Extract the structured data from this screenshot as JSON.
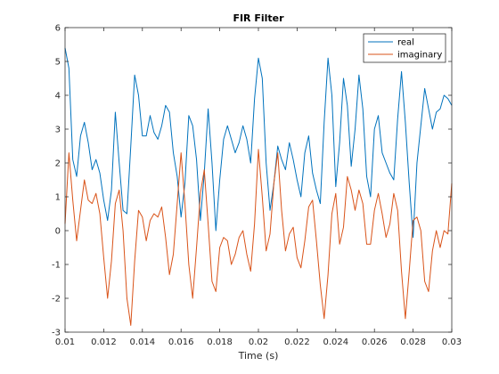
{
  "chart_data": {
    "type": "line",
    "title": "FIR Filter",
    "xlabel": "Time (s)",
    "ylabel": "",
    "xlim": [
      0.01,
      0.03
    ],
    "ylim": [
      -3,
      6
    ],
    "xticks": [
      "0.01",
      "0.012",
      "0.014",
      "0.016",
      "0.018",
      "0.02",
      "0.022",
      "0.024",
      "0.026",
      "0.028",
      "0.03"
    ],
    "yticks": [
      "-3",
      "-2",
      "-1",
      "0",
      "1",
      "2",
      "3",
      "4",
      "5",
      "6"
    ],
    "grid": false,
    "legend_position": "top-right",
    "series": [
      {
        "name": "real",
        "color": "#0072bd",
        "x": [
          0.01,
          0.0102,
          0.0104,
          0.0106,
          0.0108,
          0.011,
          0.0112,
          0.0114,
          0.0116,
          0.0118,
          0.012,
          0.0122,
          0.0124,
          0.0126,
          0.0128,
          0.013,
          0.0132,
          0.0134,
          0.0136,
          0.0138,
          0.014,
          0.0142,
          0.0144,
          0.0146,
          0.0148,
          0.015,
          0.0152,
          0.0154,
          0.0156,
          0.0158,
          0.016,
          0.0162,
          0.0164,
          0.0166,
          0.0168,
          0.017,
          0.0172,
          0.0174,
          0.0176,
          0.0178,
          0.018,
          0.0182,
          0.0184,
          0.0186,
          0.0188,
          0.019,
          0.0192,
          0.0194,
          0.0196,
          0.0198,
          0.02,
          0.0202,
          0.0204,
          0.0206,
          0.0208,
          0.021,
          0.0212,
          0.0214,
          0.0216,
          0.0218,
          0.022,
          0.0222,
          0.0224,
          0.0226,
          0.0228,
          0.023,
          0.0232,
          0.0234,
          0.0236,
          0.0238,
          0.024,
          0.0242,
          0.0244,
          0.0246,
          0.0248,
          0.025,
          0.0252,
          0.0254,
          0.0256,
          0.0258,
          0.026,
          0.0262,
          0.0264,
          0.0266,
          0.0268,
          0.027,
          0.0272,
          0.0274,
          0.0276,
          0.0278,
          0.028,
          0.0282,
          0.0284,
          0.0286,
          0.0288,
          0.029,
          0.0292,
          0.0294,
          0.0296,
          0.0298,
          0.03
        ],
        "values": [
          5.4,
          4.8,
          2.1,
          1.6,
          2.8,
          3.2,
          2.6,
          1.8,
          2.1,
          1.7,
          0.9,
          0.3,
          1.2,
          3.5,
          2.0,
          0.6,
          0.5,
          2.5,
          4.6,
          4.0,
          2.8,
          2.8,
          3.4,
          2.9,
          2.7,
          3.1,
          3.7,
          3.5,
          2.3,
          1.6,
          0.4,
          1.4,
          3.4,
          3.1,
          2.1,
          0.3,
          1.7,
          3.6,
          2.0,
          0.0,
          1.5,
          2.7,
          3.1,
          2.7,
          2.3,
          2.6,
          3.1,
          2.7,
          2.0,
          3.9,
          5.1,
          4.5,
          2.0,
          0.6,
          1.4,
          2.5,
          2.1,
          1.8,
          2.6,
          2.1,
          1.5,
          1.0,
          2.3,
          2.8,
          1.7,
          1.2,
          0.8,
          3.2,
          5.1,
          4.0,
          1.3,
          2.6,
          4.5,
          3.7,
          1.9,
          3.0,
          4.6,
          3.6,
          1.6,
          1.0,
          3.0,
          3.4,
          2.3,
          2.0,
          1.7,
          1.5,
          3.3,
          4.7,
          3.2,
          1.4,
          -0.2,
          2.0,
          3.1,
          4.2,
          3.6,
          3.0,
          3.5,
          3.6,
          4.0,
          3.9,
          3.7
        ]
      },
      {
        "name": "imaginary",
        "color": "#d95319",
        "x": [
          0.01,
          0.0102,
          0.0104,
          0.0106,
          0.0108,
          0.011,
          0.0112,
          0.0114,
          0.0116,
          0.0118,
          0.012,
          0.0122,
          0.0124,
          0.0126,
          0.0128,
          0.013,
          0.0132,
          0.0134,
          0.0136,
          0.0138,
          0.014,
          0.0142,
          0.0144,
          0.0146,
          0.0148,
          0.015,
          0.0152,
          0.0154,
          0.0156,
          0.0158,
          0.016,
          0.0162,
          0.0164,
          0.0166,
          0.0168,
          0.017,
          0.0172,
          0.0174,
          0.0176,
          0.0178,
          0.018,
          0.0182,
          0.0184,
          0.0186,
          0.0188,
          0.019,
          0.0192,
          0.0194,
          0.0196,
          0.0198,
          0.02,
          0.0202,
          0.0204,
          0.0206,
          0.0208,
          0.021,
          0.0212,
          0.0214,
          0.0216,
          0.0218,
          0.022,
          0.0222,
          0.0224,
          0.0226,
          0.0228,
          0.023,
          0.0232,
          0.0234,
          0.0236,
          0.0238,
          0.024,
          0.0242,
          0.0244,
          0.0246,
          0.0248,
          0.025,
          0.0252,
          0.0254,
          0.0256,
          0.0258,
          0.026,
          0.0262,
          0.0264,
          0.0266,
          0.0268,
          0.027,
          0.0272,
          0.0274,
          0.0276,
          0.0278,
          0.028,
          0.0282,
          0.0284,
          0.0286,
          0.0288,
          0.029,
          0.0292,
          0.0294,
          0.0296,
          0.0298,
          0.03
        ],
        "values": [
          0.2,
          2.3,
          0.9,
          -0.3,
          0.6,
          1.5,
          0.9,
          0.8,
          1.1,
          0.5,
          -0.8,
          -2.0,
          -0.9,
          0.8,
          1.2,
          0.0,
          -2.0,
          -2.8,
          -0.9,
          0.6,
          0.4,
          -0.3,
          0.3,
          0.5,
          0.4,
          0.7,
          -0.2,
          -1.3,
          -0.7,
          0.8,
          2.3,
          0.8,
          -1.0,
          -2.0,
          -0.5,
          1.1,
          1.8,
          0.2,
          -1.5,
          -1.8,
          -0.5,
          -0.2,
          -0.3,
          -1.0,
          -0.7,
          -0.2,
          0.0,
          -0.7,
          -1.2,
          0.2,
          2.4,
          1.0,
          -0.6,
          -0.1,
          1.4,
          2.3,
          0.6,
          -0.6,
          -0.1,
          0.1,
          -0.8,
          -1.1,
          -0.3,
          0.7,
          0.9,
          -0.3,
          -1.6,
          -2.6,
          -1.3,
          0.5,
          1.1,
          -0.4,
          0.1,
          1.6,
          1.2,
          0.6,
          1.2,
          0.8,
          -0.4,
          -0.4,
          0.6,
          1.1,
          0.5,
          -0.2,
          0.2,
          1.1,
          0.6,
          -1.2,
          -2.6,
          -1.2,
          0.3,
          0.4,
          0.0,
          -1.5,
          -1.8,
          -0.6,
          0.0,
          -0.5,
          0.0,
          -0.1,
          1.4
        ]
      }
    ]
  }
}
